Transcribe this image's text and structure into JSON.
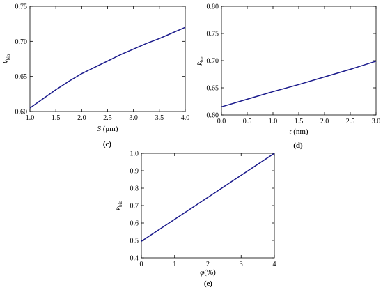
{
  "chart_data": [
    {
      "type": "line",
      "panel": "(c)",
      "xlabel_var": "S",
      "xlabel_unit": " (μm)",
      "ylabel_main": "k",
      "ylabel_sub": "bio",
      "xlim": [
        1.0,
        4.0
      ],
      "ylim": [
        0.6,
        0.75
      ],
      "xticks": [
        1.0,
        1.5,
        2.0,
        2.5,
        3.0,
        3.5,
        4.0
      ],
      "yticks": [
        0.6,
        0.65,
        0.7,
        0.75
      ],
      "xtick_labels": [
        "1.0",
        "1.5",
        "2.0",
        "2.5",
        "3.0",
        "3.5",
        "4.0"
      ],
      "ytick_labels": [
        "0.60",
        "0.65",
        "0.70",
        "0.75"
      ],
      "series": [
        {
          "color": "#1a1a8c",
          "x": [
            1.0,
            1.25,
            1.5,
            1.75,
            2.0,
            2.25,
            2.5,
            2.75,
            3.0,
            3.25,
            3.5,
            3.75,
            4.0
          ],
          "y": [
            0.605,
            0.618,
            0.631,
            0.643,
            0.654,
            0.663,
            0.672,
            0.681,
            0.689,
            0.697,
            0.704,
            0.712,
            0.72
          ]
        }
      ]
    },
    {
      "type": "line",
      "panel": "(d)",
      "xlabel_var": "t",
      "xlabel_unit": " (nm)",
      "ylabel_main": "k",
      "ylabel_sub": "bio",
      "xlim": [
        0.0,
        3.0
      ],
      "ylim": [
        0.6,
        0.8
      ],
      "xticks": [
        0.0,
        0.5,
        1.0,
        1.5,
        2.0,
        2.5,
        3.0
      ],
      "yticks": [
        0.6,
        0.65,
        0.7,
        0.75,
        0.8
      ],
      "xtick_labels": [
        "0.0",
        "0.5",
        "1.0",
        "1.5",
        "2.0",
        "2.5",
        "3.0"
      ],
      "ytick_labels": [
        "0.60",
        "0.65",
        "0.70",
        "0.75",
        "0.80"
      ],
      "series": [
        {
          "color": "#1a1a8c",
          "x": [
            0.0,
            0.5,
            1.0,
            1.5,
            2.0,
            2.5,
            3.0
          ],
          "y": [
            0.615,
            0.629,
            0.643,
            0.656,
            0.67,
            0.684,
            0.699
          ]
        }
      ]
    },
    {
      "type": "line",
      "panel": "(e)",
      "xlabel_var": "φ",
      "xlabel_unit": "(%)",
      "ylabel_main": "k",
      "ylabel_sub": "bio",
      "xlim": [
        0,
        4
      ],
      "ylim": [
        0.4,
        1.0
      ],
      "xticks": [
        0,
        1,
        2,
        3,
        4
      ],
      "yticks": [
        0.4,
        0.5,
        0.6,
        0.7,
        0.8,
        0.9,
        1.0
      ],
      "xtick_labels": [
        "0",
        "1",
        "2",
        "3",
        "4"
      ],
      "ytick_labels": [
        "0.4",
        "0.5",
        "0.6",
        "0.7",
        "0.8",
        "0.9",
        "1.0"
      ],
      "series": [
        {
          "color": "#1a1a8c",
          "x": [
            0,
            1,
            2,
            3,
            4
          ],
          "y": [
            0.495,
            0.621,
            0.747,
            0.874,
            1.0
          ]
        }
      ]
    }
  ]
}
